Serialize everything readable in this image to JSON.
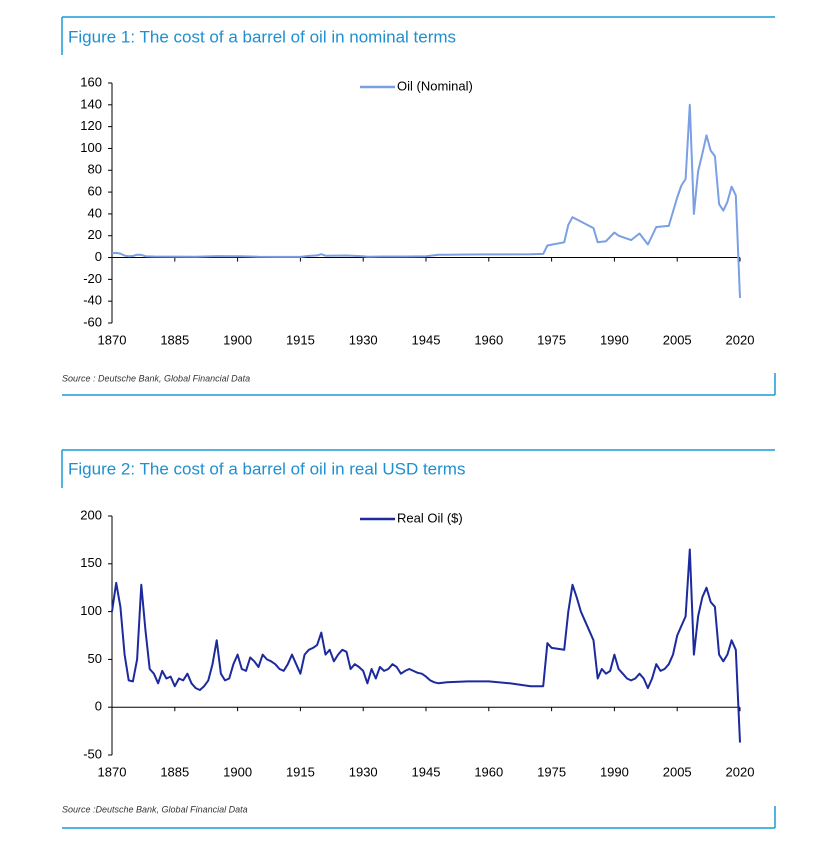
{
  "chart_data": [
    {
      "type": "line",
      "title": "Figure 1: The cost of a barrel of oil in nominal terms",
      "source": "Source : Deutsche Bank, Global Financial Data",
      "grid": false,
      "legend": "top",
      "x": [
        1870,
        1871,
        1872,
        1873,
        1874,
        1875,
        1876,
        1877,
        1878,
        1880,
        1885,
        1890,
        1895,
        1900,
        1901,
        1905,
        1910,
        1915,
        1917,
        1919,
        1920,
        1921,
        1926,
        1930,
        1931,
        1935,
        1940,
        1945,
        1948,
        1950,
        1955,
        1960,
        1965,
        1970,
        1973,
        1974,
        1978,
        1979,
        1980,
        1981,
        1985,
        1986,
        1988,
        1990,
        1991,
        1994,
        1996,
        1998,
        2000,
        2003,
        2005,
        2006,
        2007,
        2008,
        2009,
        2010,
        2011,
        2012,
        2013,
        2014,
        2015,
        2016,
        2017,
        2018,
        2019,
        2020
      ],
      "series": [
        {
          "name": "Oil (Nominal)",
          "color": "#7a9fe3",
          "values": [
            3.9,
            4.3,
            3.6,
            1.8,
            1.2,
            1.4,
            2.6,
            2.4,
            1.2,
            1,
            0.9,
            0.8,
            1.3,
            1.2,
            1.2,
            0.7,
            0.6,
            0.6,
            1.5,
            2,
            3.1,
            1.7,
            1.9,
            1.2,
            0.65,
            1,
            1,
            1.2,
            2.5,
            2.5,
            2.8,
            2.9,
            2.9,
            3,
            3.3,
            11,
            14,
            30,
            37,
            35,
            27,
            14,
            15,
            23,
            20,
            16,
            22,
            12,
            28,
            29,
            55,
            66,
            72,
            140,
            40,
            79,
            95,
            112,
            98,
            93,
            49,
            43,
            51,
            65,
            57,
            -37
          ]
        }
      ],
      "xlim": [
        1870,
        2020
      ],
      "xticks": [
        1870,
        1885,
        1900,
        1915,
        1930,
        1945,
        1960,
        1975,
        1990,
        2005,
        2020
      ],
      "ylim": [
        -60,
        160
      ],
      "yticks": [
        -60,
        -40,
        -20,
        0,
        20,
        40,
        60,
        80,
        100,
        120,
        140,
        160
      ]
    },
    {
      "type": "line",
      "title": "Figure 2: The cost of a barrel of oil in real USD terms",
      "source": "Source :Deutsche Bank, Global Financial Data",
      "grid": false,
      "legend": "top",
      "x": [
        1870,
        1871,
        1872,
        1873,
        1874,
        1875,
        1876,
        1877,
        1878,
        1879,
        1880,
        1881,
        1882,
        1883,
        1884,
        1885,
        1886,
        1887,
        1888,
        1889,
        1890,
        1891,
        1892,
        1893,
        1894,
        1895,
        1896,
        1897,
        1898,
        1899,
        1900,
        1901,
        1902,
        1903,
        1904,
        1905,
        1906,
        1907,
        1908,
        1909,
        1910,
        1911,
        1912,
        1913,
        1914,
        1915,
        1916,
        1917,
        1918,
        1919,
        1920,
        1921,
        1922,
        1923,
        1924,
        1925,
        1926,
        1927,
        1928,
        1929,
        1930,
        1931,
        1932,
        1933,
        1934,
        1935,
        1936,
        1937,
        1938,
        1939,
        1940,
        1941,
        1942,
        1943,
        1944,
        1945,
        1946,
        1947,
        1948,
        1950,
        1955,
        1960,
        1965,
        1970,
        1973,
        1974,
        1975,
        1978,
        1979,
        1980,
        1981,
        1982,
        1983,
        1984,
        1985,
        1986,
        1987,
        1988,
        1989,
        1990,
        1991,
        1992,
        1993,
        1994,
        1995,
        1996,
        1997,
        1998,
        1999,
        2000,
        2001,
        2002,
        2003,
        2004,
        2005,
        2006,
        2007,
        2008,
        2009,
        2010,
        2011,
        2012,
        2013,
        2014,
        2015,
        2016,
        2017,
        2018,
        2019,
        2020
      ],
      "series": [
        {
          "name": "Real Oil ($)",
          "color": "#1c2a9e",
          "values": [
            100,
            130,
            105,
            55,
            28,
            27,
            50,
            128,
            80,
            40,
            35,
            25,
            38,
            30,
            32,
            22,
            30,
            28,
            35,
            25,
            20,
            18,
            22,
            28,
            45,
            70,
            35,
            28,
            30,
            45,
            55,
            40,
            38,
            52,
            48,
            42,
            55,
            50,
            48,
            45,
            40,
            38,
            45,
            55,
            45,
            35,
            55,
            60,
            62,
            65,
            78,
            55,
            60,
            48,
            55,
            60,
            58,
            40,
            45,
            42,
            38,
            25,
            40,
            30,
            42,
            38,
            40,
            45,
            42,
            35,
            38,
            40,
            38,
            36,
            35,
            32,
            28,
            26,
            25,
            26,
            27,
            27,
            25,
            22,
            22,
            67,
            62,
            60,
            100,
            128,
            115,
            100,
            90,
            80,
            70,
            30,
            40,
            35,
            38,
            55,
            40,
            35,
            30,
            28,
            30,
            35,
            30,
            20,
            30,
            45,
            38,
            40,
            45,
            55,
            75,
            85,
            95,
            165,
            55,
            95,
            115,
            125,
            110,
            105,
            55,
            48,
            55,
            70,
            60,
            -37
          ]
        }
      ],
      "xlim": [
        1870,
        2020
      ],
      "xticks": [
        1870,
        1885,
        1900,
        1915,
        1930,
        1945,
        1960,
        1975,
        1990,
        2005,
        2020
      ],
      "ylim": [
        -50,
        200
      ],
      "yticks": [
        -50,
        0,
        50,
        100,
        150,
        200
      ]
    }
  ]
}
